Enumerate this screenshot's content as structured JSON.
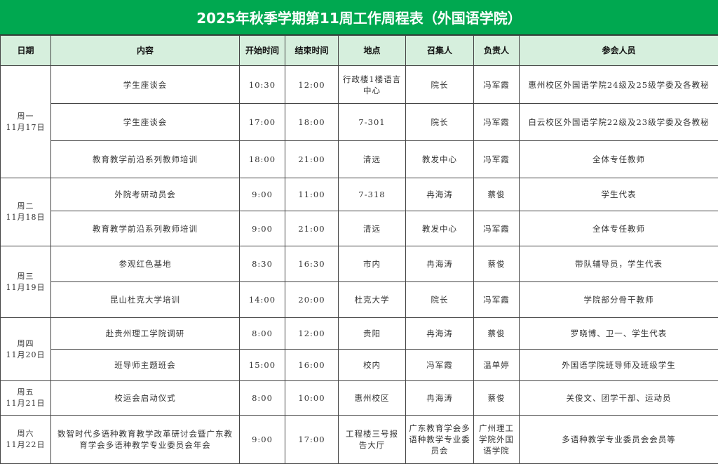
{
  "title": "2025年秋季学期第11周工作周程表（外国语学院）",
  "headers": [
    "日期",
    "内容",
    "开始时间",
    "结束时间",
    "地点",
    "召集人",
    "负责人",
    "参会人员"
  ],
  "days": [
    {
      "day": "周一",
      "date": "11月17日",
      "rows": [
        [
          "学生座谈会",
          "10:30",
          "12:00",
          "行政楼1楼语言中心",
          "院长",
          "冯军霞",
          "惠州校区外国语学院24级及25级学委及各教秘"
        ],
        [
          "学生座谈会",
          "17:00",
          "18:00",
          "7-301",
          "院长",
          "冯军霞",
          "白云校区外国语学院22级及23级学委及各教秘"
        ],
        [
          "教育教学前沿系列教师培训",
          "18:00",
          "21:00",
          "清远",
          "教发中心",
          "冯军霞",
          "全体专任教师"
        ]
      ]
    },
    {
      "day": "周二",
      "date": "11月18日",
      "rows": [
        [
          "外院考研动员会",
          "9:00",
          "11:00",
          "7-318",
          "冉海涛",
          "蔡俊",
          "学生代表"
        ],
        [
          "教育教学前沿系列教师培训",
          "9:00",
          "21:00",
          "清远",
          "教发中心",
          "冯军霞",
          "全体专任教师"
        ]
      ]
    },
    {
      "day": "周三",
      "date": "11月19日",
      "rows": [
        [
          "参观红色基地",
          "8:30",
          "16:30",
          "市内",
          "冉海涛",
          "蔡俊",
          "带队辅导员，学生代表"
        ],
        [
          "昆山杜克大学培训",
          "14:00",
          "20:00",
          "杜克大学",
          "院长",
          "冯军霞",
          "学院部分骨干教师"
        ]
      ]
    },
    {
      "day": "周四",
      "date": "11月20日",
      "rows": [
        [
          "赴贵州理工学院调研",
          "8:00",
          "12:00",
          "贵阳",
          "冉海涛",
          "蔡俊",
          "罗晓博、卫一、学生代表"
        ],
        [
          "班导师主题班会",
          "15:00",
          "16:00",
          "校内",
          "冯军霞",
          "温单婷",
          "外国语学院班导师及班级学生"
        ]
      ]
    },
    {
      "day": "周五",
      "date": "11月21日",
      "rows": [
        [
          "校运会启动仪式",
          "8:00",
          "10:00",
          "惠州校区",
          "冉海涛",
          "蔡俊",
          "关俊文、团学干部、运动员"
        ]
      ]
    },
    {
      "day": "周六",
      "date": "11月22日",
      "rows": [
        [
          "数智时代多语种教育教学改革研讨会暨广东教育学会多语种教学专业委员会年会",
          "9:00",
          "17:00",
          "工程楼三号报告大厅",
          "广东教育学会多语种教学专业委员会",
          "广州理工学院外国语学院",
          "多语种教学专业委员会会员等"
        ]
      ]
    }
  ],
  "colors": {
    "title_bg": "#00a850",
    "header_bg": "#d6efdd"
  }
}
